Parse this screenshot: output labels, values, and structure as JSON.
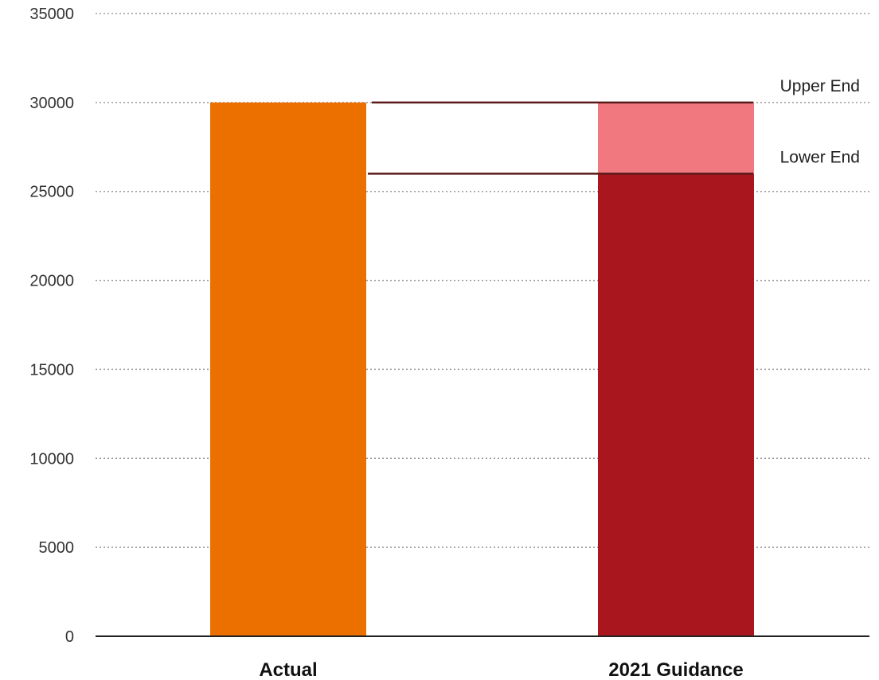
{
  "chart_data": {
    "type": "bar",
    "title": "",
    "xlabel": "",
    "ylabel": "",
    "ylim": [
      0,
      35000
    ],
    "yticks": [
      0,
      5000,
      10000,
      15000,
      20000,
      25000,
      30000,
      35000
    ],
    "grid": true,
    "categories": [
      "Actual",
      "2021 Guidance"
    ],
    "bars": [
      {
        "category": "Actual",
        "segments": [
          {
            "value": 30000,
            "color": "#ec7000"
          }
        ]
      },
      {
        "category": "2021 Guidance",
        "segments": [
          {
            "value": 26000,
            "color": "#aa161e"
          },
          {
            "value": 4000,
            "color": "#f0787e"
          }
        ]
      }
    ],
    "reference_lines": [
      {
        "label": "Upper End",
        "value": 30000
      },
      {
        "label": "Lower End",
        "value": 26000
      }
    ]
  }
}
